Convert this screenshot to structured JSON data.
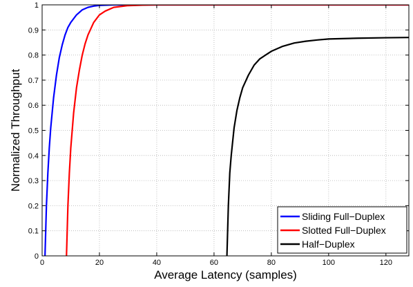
{
  "chart_data": {
    "type": "line",
    "title": "",
    "xlabel": "Average Latency (samples)",
    "ylabel": "Normalized Throughput",
    "xlim": [
      0,
      128
    ],
    "ylim": [
      0,
      1
    ],
    "xticks": [
      0,
      20,
      40,
      60,
      80,
      100,
      120
    ],
    "yticks": [
      0,
      0.1,
      0.2,
      0.3,
      0.4,
      0.5,
      0.6,
      0.7,
      0.8,
      0.9,
      1
    ],
    "grid": true,
    "legend_position": "bottom-right",
    "series": [
      {
        "name": "Sliding Full−Duplex",
        "color": "#0000ff",
        "x": [
          1.0,
          1.5,
          2.0,
          2.5,
          3.0,
          4.0,
          5.0,
          6.0,
          7.0,
          8.0,
          9.0,
          10.0,
          12.0,
          14.0,
          16.0,
          18.0,
          20.0,
          25.0,
          30.0,
          128.0
        ],
        "y": [
          0.0,
          0.2,
          0.33,
          0.43,
          0.51,
          0.63,
          0.72,
          0.79,
          0.84,
          0.88,
          0.91,
          0.93,
          0.96,
          0.98,
          0.99,
          0.995,
          0.998,
          1.0,
          1.0,
          1.0
        ]
      },
      {
        "name": "Slotted Full−Duplex",
        "color": "#ff0000",
        "x": [
          8.5,
          9.0,
          9.5,
          10.0,
          11.0,
          12.0,
          13.0,
          14.0,
          15.0,
          16.0,
          18.0,
          20.0,
          22.0,
          25.0,
          30.0,
          35.0,
          40.0,
          128.0
        ],
        "y": [
          0.0,
          0.2,
          0.33,
          0.43,
          0.57,
          0.67,
          0.74,
          0.8,
          0.845,
          0.88,
          0.93,
          0.96,
          0.975,
          0.99,
          0.997,
          0.999,
          1.0,
          1.0
        ]
      },
      {
        "name": "Half−Duplex",
        "color": "#000000",
        "x": [
          64.5,
          65.0,
          65.5,
          66.0,
          67.0,
          68.0,
          69.0,
          70.0,
          72.0,
          74.0,
          76.0,
          78.0,
          80.0,
          84.0,
          88.0,
          92.0,
          96.0,
          100.0,
          110.0,
          120.0,
          128.0
        ],
        "y": [
          0.0,
          0.2,
          0.33,
          0.4,
          0.51,
          0.58,
          0.63,
          0.67,
          0.72,
          0.76,
          0.785,
          0.8,
          0.815,
          0.835,
          0.848,
          0.855,
          0.86,
          0.864,
          0.867,
          0.869,
          0.87
        ]
      }
    ]
  }
}
